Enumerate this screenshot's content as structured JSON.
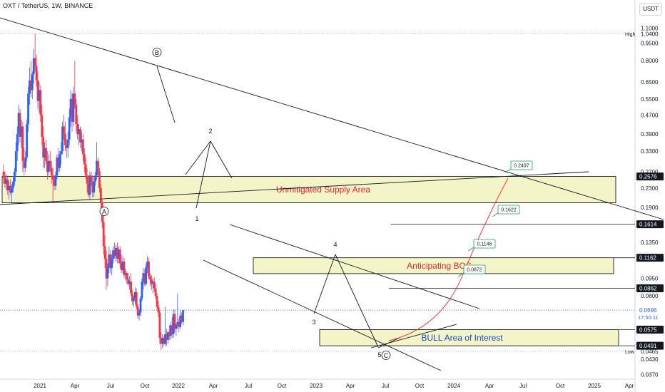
{
  "header": {
    "symbol": "OXT / TetherUS, 1W, BINANCE",
    "currency": "USDT"
  },
  "colors": {
    "up": "#2962ff",
    "down": "#f23645",
    "zone_fill": "#f3f5c8",
    "zone_border": "#000000",
    "trend": "#131722",
    "curve": "#f23645",
    "label_red": "#e8232e",
    "label_blue": "#1848d8"
  },
  "chart_data": {
    "type": "candlestick",
    "yscale": "log",
    "ylim": [
      0.0354,
      1.45
    ],
    "x_ticks": [
      "2021",
      "Apr",
      "Jul",
      "Oct",
      "2022",
      "Apr",
      "Jul",
      "Oct",
      "2023",
      "Apr",
      "Jul",
      "Oct",
      "2024",
      "Apr",
      "Jul",
      "Oct",
      "2025",
      "Apr"
    ],
    "y_ticks": [
      "1.1000",
      "1.0400",
      "0.9500",
      "0.8000",
      "0.6500",
      "0.5500",
      "0.4700",
      "0.3900",
      "0.3300",
      "0.2700",
      "0.2300",
      "0.1900",
      "0.1350",
      "0.0950",
      "0.0800",
      "0.0465",
      "0.0430",
      "0.0370"
    ],
    "high_label": "High",
    "high_value": "1.0400",
    "low_label": "Low",
    "low_value": "0.0465",
    "price_tags": [
      {
        "value": "0.2576",
        "style": "dark"
      },
      {
        "value": "0.1614",
        "style": "dark"
      },
      {
        "value": "0.1162",
        "style": "dark"
      },
      {
        "value": "0.0862",
        "style": "dark"
      },
      {
        "value": "0.0575",
        "style": "dark"
      },
      {
        "value": "0.0491",
        "style": "dark"
      },
      {
        "value": "0.0696",
        "sub": "17:50:11",
        "style": "blue"
      }
    ],
    "current_price": 0.0696,
    "zones": [
      {
        "label": "Unmitigated Supply Area",
        "top": 0.2576,
        "bottom": 0.199,
        "color": "label_red"
      },
      {
        "label": "Anticipating BOS",
        "top": 0.1162,
        "bottom": 0.0995,
        "color": "label_red"
      },
      {
        "label": "BULL Area of Interest",
        "top": 0.0575,
        "bottom": 0.0491,
        "color": "label_blue"
      }
    ],
    "targets": [
      "0.0872",
      "0.1146",
      "0.1622",
      "0.2497"
    ],
    "wave_labels": [
      "A",
      "B",
      "1",
      "2",
      "3",
      "4",
      "5",
      "C"
    ],
    "candles": [
      {
        "o": 0.27,
        "h": 0.29,
        "l": 0.24,
        "c": 0.255
      },
      {
        "o": 0.255,
        "h": 0.27,
        "l": 0.23,
        "c": 0.24
      },
      {
        "o": 0.24,
        "h": 0.265,
        "l": 0.225,
        "c": 0.25
      },
      {
        "o": 0.25,
        "h": 0.26,
        "l": 0.215,
        "c": 0.225
      },
      {
        "o": 0.225,
        "h": 0.245,
        "l": 0.205,
        "c": 0.235
      },
      {
        "o": 0.235,
        "h": 0.25,
        "l": 0.215,
        "c": 0.22
      },
      {
        "o": 0.22,
        "h": 0.24,
        "l": 0.2,
        "c": 0.23
      },
      {
        "o": 0.23,
        "h": 0.255,
        "l": 0.22,
        "c": 0.245
      },
      {
        "o": 0.245,
        "h": 0.28,
        "l": 0.235,
        "c": 0.27
      },
      {
        "o": 0.27,
        "h": 0.36,
        "l": 0.26,
        "c": 0.33
      },
      {
        "o": 0.33,
        "h": 0.42,
        "l": 0.3,
        "c": 0.39
      },
      {
        "o": 0.39,
        "h": 0.52,
        "l": 0.35,
        "c": 0.48
      },
      {
        "o": 0.48,
        "h": 0.5,
        "l": 0.36,
        "c": 0.38
      },
      {
        "o": 0.38,
        "h": 0.45,
        "l": 0.34,
        "c": 0.42
      },
      {
        "o": 0.42,
        "h": 0.44,
        "l": 0.27,
        "c": 0.3
      },
      {
        "o": 0.3,
        "h": 0.34,
        "l": 0.26,
        "c": 0.28
      },
      {
        "o": 0.28,
        "h": 0.33,
        "l": 0.27,
        "c": 0.31
      },
      {
        "o": 0.31,
        "h": 0.45,
        "l": 0.3,
        "c": 0.43
      },
      {
        "o": 0.43,
        "h": 0.62,
        "l": 0.4,
        "c": 0.58
      },
      {
        "o": 0.58,
        "h": 0.75,
        "l": 0.52,
        "c": 0.66
      },
      {
        "o": 0.66,
        "h": 0.8,
        "l": 0.56,
        "c": 0.6
      },
      {
        "o": 0.6,
        "h": 0.72,
        "l": 0.55,
        "c": 0.7
      },
      {
        "o": 0.7,
        "h": 0.9,
        "l": 0.64,
        "c": 0.82
      },
      {
        "o": 0.82,
        "h": 1.04,
        "l": 0.72,
        "c": 0.76
      },
      {
        "o": 0.76,
        "h": 0.85,
        "l": 0.62,
        "c": 0.66
      },
      {
        "o": 0.66,
        "h": 0.72,
        "l": 0.5,
        "c": 0.54
      },
      {
        "o": 0.54,
        "h": 0.65,
        "l": 0.48,
        "c": 0.6
      },
      {
        "o": 0.6,
        "h": 0.63,
        "l": 0.44,
        "c": 0.47
      },
      {
        "o": 0.47,
        "h": 0.52,
        "l": 0.35,
        "c": 0.38
      },
      {
        "o": 0.38,
        "h": 0.42,
        "l": 0.28,
        "c": 0.31
      },
      {
        "o": 0.31,
        "h": 0.36,
        "l": 0.28,
        "c": 0.34
      },
      {
        "o": 0.34,
        "h": 0.37,
        "l": 0.29,
        "c": 0.3
      },
      {
        "o": 0.3,
        "h": 0.33,
        "l": 0.25,
        "c": 0.27
      },
      {
        "o": 0.27,
        "h": 0.32,
        "l": 0.26,
        "c": 0.3
      },
      {
        "o": 0.3,
        "h": 0.33,
        "l": 0.27,
        "c": 0.28
      },
      {
        "o": 0.28,
        "h": 0.3,
        "l": 0.24,
        "c": 0.26
      },
      {
        "o": 0.26,
        "h": 0.28,
        "l": 0.2,
        "c": 0.25
      },
      {
        "o": 0.25,
        "h": 0.26,
        "l": 0.225,
        "c": 0.235
      },
      {
        "o": 0.235,
        "h": 0.27,
        "l": 0.225,
        "c": 0.26
      },
      {
        "o": 0.26,
        "h": 0.32,
        "l": 0.25,
        "c": 0.31
      },
      {
        "o": 0.31,
        "h": 0.34,
        "l": 0.27,
        "c": 0.28
      },
      {
        "o": 0.28,
        "h": 0.33,
        "l": 0.27,
        "c": 0.32
      },
      {
        "o": 0.32,
        "h": 0.36,
        "l": 0.29,
        "c": 0.33
      },
      {
        "o": 0.33,
        "h": 0.44,
        "l": 0.32,
        "c": 0.42
      },
      {
        "o": 0.42,
        "h": 0.47,
        "l": 0.37,
        "c": 0.39
      },
      {
        "o": 0.39,
        "h": 0.44,
        "l": 0.33,
        "c": 0.35
      },
      {
        "o": 0.35,
        "h": 0.37,
        "l": 0.31,
        "c": 0.34
      },
      {
        "o": 0.34,
        "h": 0.4,
        "l": 0.31,
        "c": 0.37
      },
      {
        "o": 0.37,
        "h": 0.5,
        "l": 0.35,
        "c": 0.46
      },
      {
        "o": 0.46,
        "h": 0.6,
        "l": 0.42,
        "c": 0.55
      },
      {
        "o": 0.55,
        "h": 0.58,
        "l": 0.4,
        "c": 0.44
      },
      {
        "o": 0.44,
        "h": 0.62,
        "l": 0.42,
        "c": 0.58
      },
      {
        "o": 0.58,
        "h": 0.8,
        "l": 0.5,
        "c": 0.52
      },
      {
        "o": 0.52,
        "h": 0.55,
        "l": 0.4,
        "c": 0.43
      },
      {
        "o": 0.43,
        "h": 0.47,
        "l": 0.37,
        "c": 0.39
      },
      {
        "o": 0.39,
        "h": 0.43,
        "l": 0.35,
        "c": 0.41
      },
      {
        "o": 0.41,
        "h": 0.42,
        "l": 0.34,
        "c": 0.36
      },
      {
        "o": 0.36,
        "h": 0.4,
        "l": 0.33,
        "c": 0.37
      },
      {
        "o": 0.37,
        "h": 0.39,
        "l": 0.3,
        "c": 0.32
      },
      {
        "o": 0.32,
        "h": 0.34,
        "l": 0.27,
        "c": 0.29
      },
      {
        "o": 0.29,
        "h": 0.31,
        "l": 0.25,
        "c": 0.26
      },
      {
        "o": 0.26,
        "h": 0.28,
        "l": 0.22,
        "c": 0.24
      },
      {
        "o": 0.24,
        "h": 0.26,
        "l": 0.21,
        "c": 0.215
      },
      {
        "o": 0.215,
        "h": 0.27,
        "l": 0.205,
        "c": 0.26
      },
      {
        "o": 0.26,
        "h": 0.27,
        "l": 0.235,
        "c": 0.245
      },
      {
        "o": 0.245,
        "h": 0.26,
        "l": 0.21,
        "c": 0.22
      },
      {
        "o": 0.22,
        "h": 0.255,
        "l": 0.21,
        "c": 0.245
      },
      {
        "o": 0.245,
        "h": 0.27,
        "l": 0.235,
        "c": 0.26
      },
      {
        "o": 0.26,
        "h": 0.36,
        "l": 0.25,
        "c": 0.3
      },
      {
        "o": 0.3,
        "h": 0.31,
        "l": 0.26,
        "c": 0.27
      },
      {
        "o": 0.27,
        "h": 0.28,
        "l": 0.22,
        "c": 0.23
      },
      {
        "o": 0.23,
        "h": 0.24,
        "l": 0.185,
        "c": 0.2
      },
      {
        "o": 0.2,
        "h": 0.205,
        "l": 0.155,
        "c": 0.165
      },
      {
        "o": 0.165,
        "h": 0.175,
        "l": 0.12,
        "c": 0.13
      },
      {
        "o": 0.13,
        "h": 0.145,
        "l": 0.105,
        "c": 0.115
      },
      {
        "o": 0.115,
        "h": 0.125,
        "l": 0.085,
        "c": 0.095
      },
      {
        "o": 0.095,
        "h": 0.11,
        "l": 0.088,
        "c": 0.105
      },
      {
        "o": 0.105,
        "h": 0.13,
        "l": 0.1,
        "c": 0.12
      },
      {
        "o": 0.12,
        "h": 0.125,
        "l": 0.1,
        "c": 0.105
      },
      {
        "o": 0.105,
        "h": 0.12,
        "l": 0.098,
        "c": 0.115
      },
      {
        "o": 0.115,
        "h": 0.13,
        "l": 0.11,
        "c": 0.125
      },
      {
        "o": 0.125,
        "h": 0.135,
        "l": 0.115,
        "c": 0.118
      },
      {
        "o": 0.118,
        "h": 0.132,
        "l": 0.112,
        "c": 0.128
      },
      {
        "o": 0.128,
        "h": 0.135,
        "l": 0.11,
        "c": 0.115
      },
      {
        "o": 0.115,
        "h": 0.13,
        "l": 0.11,
        "c": 0.126
      },
      {
        "o": 0.126,
        "h": 0.13,
        "l": 0.105,
        "c": 0.11
      },
      {
        "o": 0.11,
        "h": 0.12,
        "l": 0.1,
        "c": 0.103
      },
      {
        "o": 0.103,
        "h": 0.118,
        "l": 0.1,
        "c": 0.112
      },
      {
        "o": 0.112,
        "h": 0.116,
        "l": 0.095,
        "c": 0.098
      },
      {
        "o": 0.098,
        "h": 0.104,
        "l": 0.093,
        "c": 0.1
      },
      {
        "o": 0.1,
        "h": 0.102,
        "l": 0.09,
        "c": 0.094
      },
      {
        "o": 0.094,
        "h": 0.1,
        "l": 0.088,
        "c": 0.09
      },
      {
        "o": 0.09,
        "h": 0.097,
        "l": 0.085,
        "c": 0.092
      },
      {
        "o": 0.092,
        "h": 0.1,
        "l": 0.08,
        "c": 0.082
      },
      {
        "o": 0.082,
        "h": 0.085,
        "l": 0.073,
        "c": 0.076
      },
      {
        "o": 0.076,
        "h": 0.08,
        "l": 0.072,
        "c": 0.078
      },
      {
        "o": 0.078,
        "h": 0.087,
        "l": 0.074,
        "c": 0.083
      },
      {
        "o": 0.083,
        "h": 0.086,
        "l": 0.07,
        "c": 0.072
      },
      {
        "o": 0.072,
        "h": 0.074,
        "l": 0.064,
        "c": 0.066
      },
      {
        "o": 0.066,
        "h": 0.07,
        "l": 0.063,
        "c": 0.068
      },
      {
        "o": 0.068,
        "h": 0.08,
        "l": 0.066,
        "c": 0.078
      },
      {
        "o": 0.078,
        "h": 0.095,
        "l": 0.076,
        "c": 0.092
      },
      {
        "o": 0.092,
        "h": 0.105,
        "l": 0.085,
        "c": 0.1
      },
      {
        "o": 0.1,
        "h": 0.104,
        "l": 0.088,
        "c": 0.09
      },
      {
        "o": 0.09,
        "h": 0.11,
        "l": 0.088,
        "c": 0.106
      },
      {
        "o": 0.106,
        "h": 0.118,
        "l": 0.1,
        "c": 0.112
      },
      {
        "o": 0.112,
        "h": 0.116,
        "l": 0.094,
        "c": 0.097
      },
      {
        "o": 0.097,
        "h": 0.1,
        "l": 0.088,
        "c": 0.094
      },
      {
        "o": 0.094,
        "h": 0.098,
        "l": 0.085,
        "c": 0.09
      },
      {
        "o": 0.09,
        "h": 0.095,
        "l": 0.082,
        "c": 0.092
      },
      {
        "o": 0.092,
        "h": 0.096,
        "l": 0.083,
        "c": 0.086
      },
      {
        "o": 0.086,
        "h": 0.09,
        "l": 0.078,
        "c": 0.08
      },
      {
        "o": 0.08,
        "h": 0.082,
        "l": 0.07,
        "c": 0.072
      },
      {
        "o": 0.072,
        "h": 0.076,
        "l": 0.065,
        "c": 0.068
      },
      {
        "o": 0.068,
        "h": 0.07,
        "l": 0.05,
        "c": 0.053
      },
      {
        "o": 0.053,
        "h": 0.056,
        "l": 0.047,
        "c": 0.05
      },
      {
        "o": 0.05,
        "h": 0.055,
        "l": 0.048,
        "c": 0.053
      },
      {
        "o": 0.053,
        "h": 0.054,
        "l": 0.049,
        "c": 0.05
      },
      {
        "o": 0.05,
        "h": 0.072,
        "l": 0.049,
        "c": 0.055
      },
      {
        "o": 0.055,
        "h": 0.058,
        "l": 0.049,
        "c": 0.052
      },
      {
        "o": 0.052,
        "h": 0.057,
        "l": 0.05,
        "c": 0.056
      },
      {
        "o": 0.056,
        "h": 0.06,
        "l": 0.052,
        "c": 0.054
      },
      {
        "o": 0.054,
        "h": 0.062,
        "l": 0.052,
        "c": 0.06
      },
      {
        "o": 0.06,
        "h": 0.065,
        "l": 0.053,
        "c": 0.055
      },
      {
        "o": 0.055,
        "h": 0.07,
        "l": 0.053,
        "c": 0.067
      },
      {
        "o": 0.067,
        "h": 0.07,
        "l": 0.056,
        "c": 0.058
      },
      {
        "o": 0.058,
        "h": 0.061,
        "l": 0.054,
        "c": 0.06
      },
      {
        "o": 0.06,
        "h": 0.082,
        "l": 0.058,
        "c": 0.062
      },
      {
        "o": 0.062,
        "h": 0.064,
        "l": 0.056,
        "c": 0.059
      },
      {
        "o": 0.059,
        "h": 0.07,
        "l": 0.058,
        "c": 0.066
      },
      {
        "o": 0.066,
        "h": 0.068,
        "l": 0.061,
        "c": 0.062
      },
      {
        "o": 0.062,
        "h": 0.0696,
        "l": 0.06,
        "c": 0.0696
      }
    ]
  }
}
